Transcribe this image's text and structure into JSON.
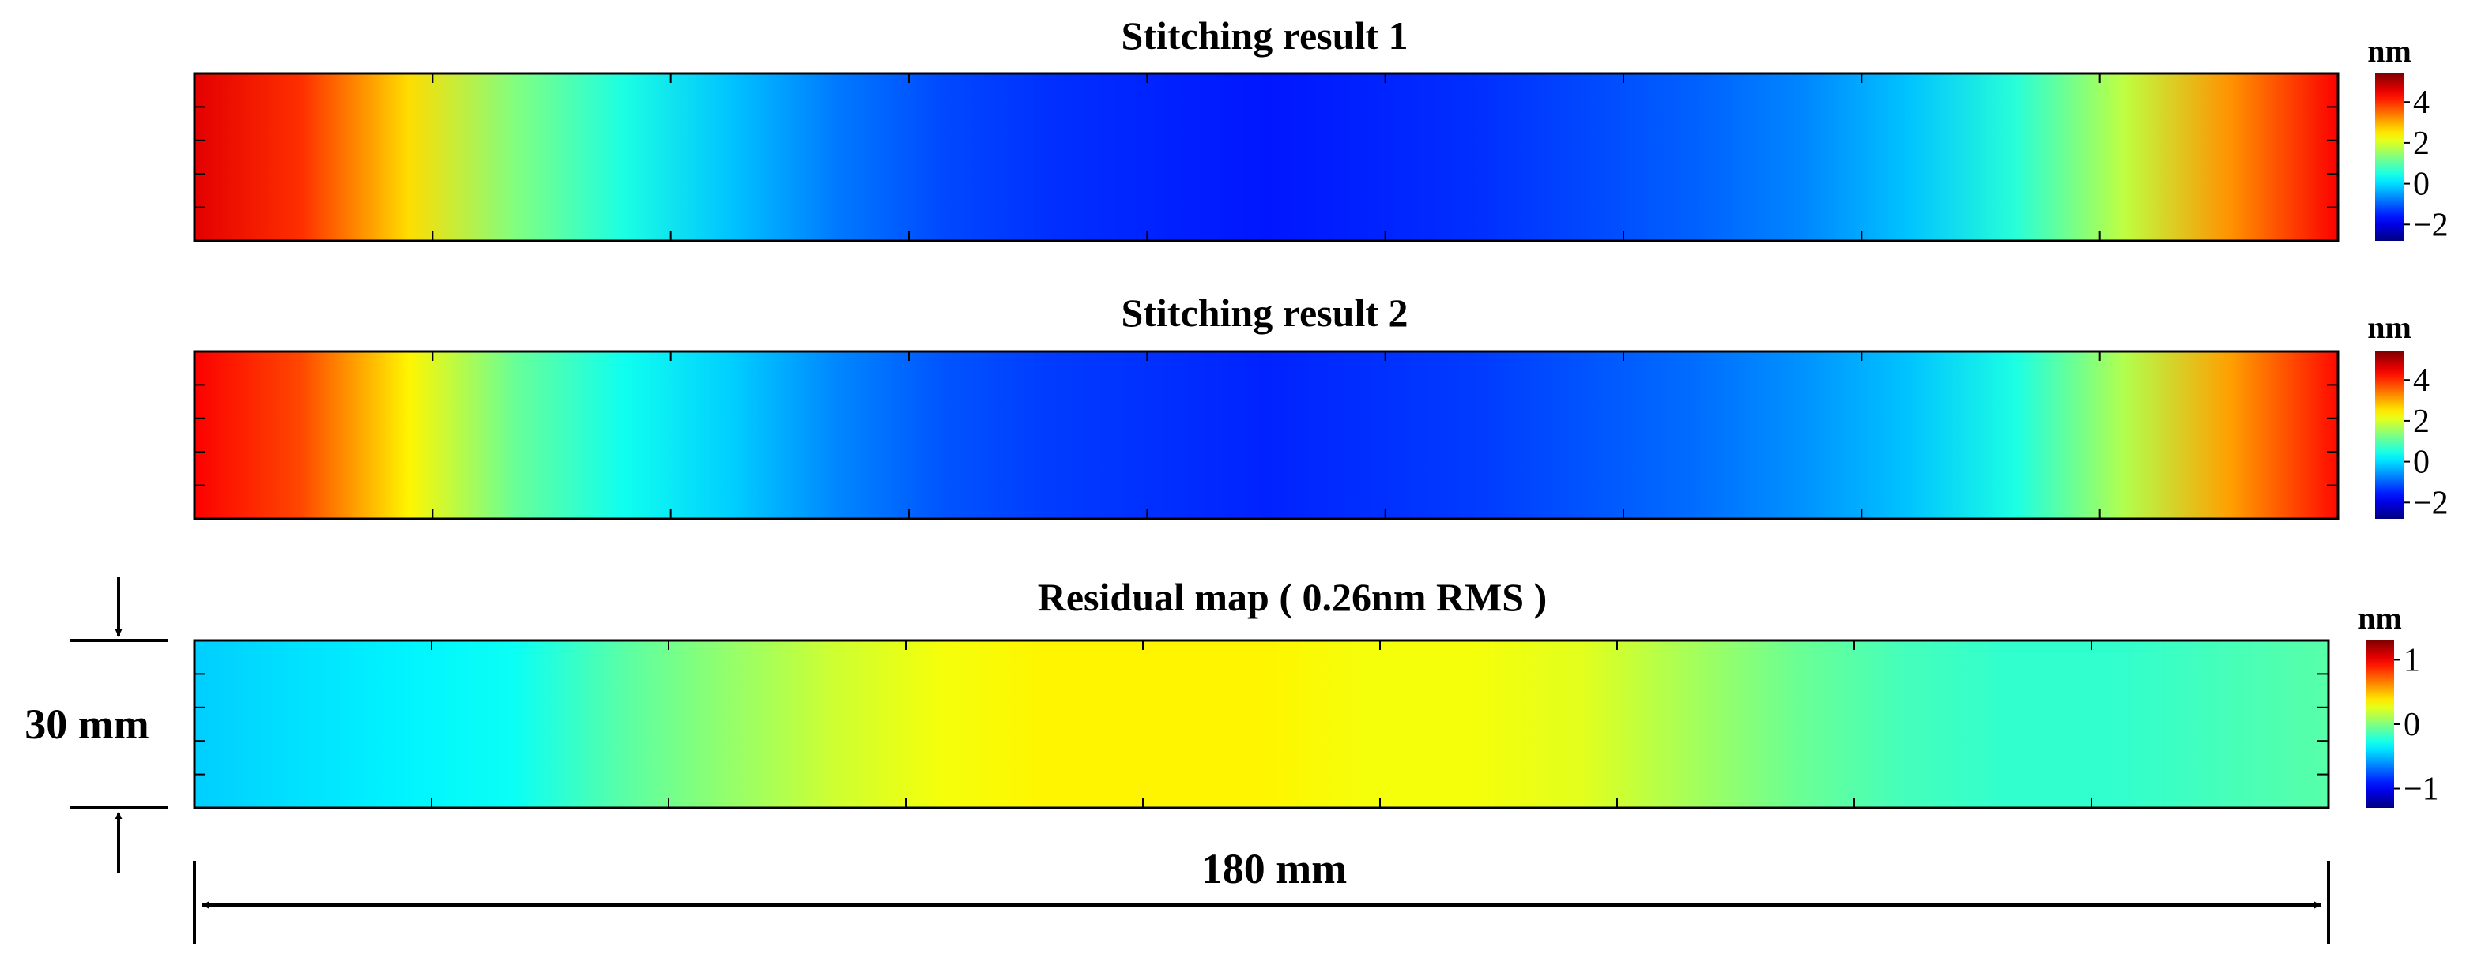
{
  "chart_data": [
    {
      "type": "heatmap",
      "title": "Stitching result 1",
      "colorbar_label": "nm",
      "colorbar_ticks": [
        {
          "value": 4,
          "label": "4"
        },
        {
          "value": 2,
          "label": "2"
        },
        {
          "value": 0,
          "label": "0"
        },
        {
          "value": -2,
          "label": "−2"
        }
      ],
      "clim": [
        -2.8,
        5.4
      ],
      "colormap": "jet",
      "profile_along_length": [
        4.6,
        4.0,
        2.6,
        1.3,
        0.5,
        -0.2,
        -0.8,
        -1.2,
        -1.4,
        -1.5,
        -1.6,
        -1.5,
        -1.4,
        -1.2,
        -1.0,
        -0.7,
        -0.2,
        0.6,
        1.8,
        3.2,
        4.4
      ]
    },
    {
      "type": "heatmap",
      "title": "Stitching result 2",
      "colorbar_label": "nm",
      "colorbar_ticks": [
        {
          "value": 4,
          "label": "4"
        },
        {
          "value": 2,
          "label": "2"
        },
        {
          "value": 0,
          "label": "0"
        },
        {
          "value": -2,
          "label": "−2"
        }
      ],
      "clim": [
        -2.8,
        5.4
      ],
      "colormap": "jet",
      "profile_along_length": [
        4.4,
        3.8,
        2.4,
        1.1,
        0.4,
        -0.1,
        -0.7,
        -1.1,
        -1.3,
        -1.4,
        -1.5,
        -1.4,
        -1.3,
        -1.1,
        -0.9,
        -0.6,
        -0.2,
        0.5,
        1.7,
        3.1,
        4.3
      ]
    },
    {
      "type": "heatmap",
      "title": "Residual map ( 0.26nm RMS )",
      "colorbar_label": "nm",
      "colorbar_ticks": [
        {
          "value": 1,
          "label": "1"
        },
        {
          "value": 0,
          "label": "0"
        },
        {
          "value": -1,
          "label": "−1"
        }
      ],
      "clim": [
        -1.3,
        1.3
      ],
      "colormap": "jet",
      "profile_along_length": [
        -0.45,
        -0.4,
        -0.35,
        -0.3,
        -0.1,
        0.05,
        0.2,
        0.3,
        0.35,
        0.35,
        0.35,
        0.3,
        0.3,
        0.25,
        0.1,
        -0.05,
        -0.15,
        -0.2,
        -0.2,
        -0.15,
        -0.1
      ]
    }
  ],
  "dimensions": {
    "height_label": "30 mm",
    "length_label": "180 mm"
  }
}
